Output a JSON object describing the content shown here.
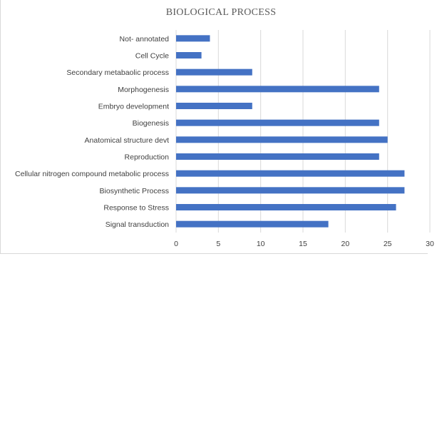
{
  "chart_data": {
    "type": "bar",
    "orientation": "horizontal",
    "title": "BIOLOGICAL PROCESS",
    "categories": [
      "Not- annotated",
      "Cell Cycle",
      "Secondary metabaolic process",
      "Morphogenesis",
      "Embryo  development",
      "Biogenesis",
      "Anatomical structure devt",
      "Reproduction",
      "Cellular nitrogen compound metabolic process",
      "Biosynthetic Process",
      "Response to Stress",
      "Signal transduction"
    ],
    "values": [
      4,
      3,
      9,
      24,
      9,
      24,
      25,
      24,
      27,
      27,
      26,
      18
    ],
    "xlim": [
      0,
      30
    ],
    "xticks": [
      "0",
      "5",
      "10",
      "15",
      "20",
      "25",
      "30"
    ],
    "grid": true,
    "legend": "none",
    "bar_color": "#4472c4",
    "grid_color": "#d9d9d9"
  }
}
